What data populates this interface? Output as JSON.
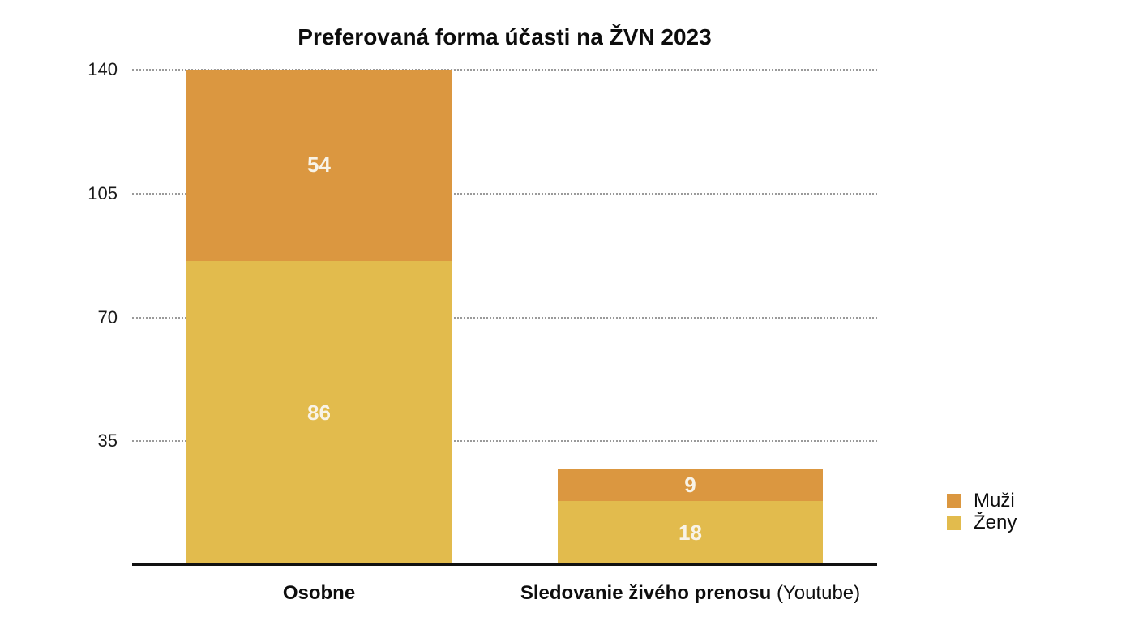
{
  "chart_data": {
    "type": "bar",
    "stacked": true,
    "title": "Preferovaná forma účasti na ŽVN 2023",
    "categories": [
      {
        "label": "Osobne",
        "suffix": ""
      },
      {
        "label": "Sledovanie živého prenosu",
        "suffix": " (Youtube)"
      }
    ],
    "series": [
      {
        "name": "Muži",
        "color": "#DB9740",
        "values": [
          54,
          9
        ]
      },
      {
        "name": "Ženy",
        "color": "#E2BB4D",
        "values": [
          86,
          18
        ]
      }
    ],
    "stack_bottom_to_top": [
      "Ženy",
      "Muži"
    ],
    "totals": [
      140,
      27
    ],
    "yticks": [
      35,
      70,
      105,
      140
    ],
    "ylim": [
      0,
      140
    ],
    "xlabel": "",
    "ylabel": "",
    "grid": "horizontal-dotted",
    "legend_position": "right",
    "colors": {
      "value_label": "#F8F3E7",
      "gridline": "#9a9a9a",
      "axis_line": "#111111",
      "text": "#0d0d0d",
      "background": "#FFFFFF"
    }
  }
}
